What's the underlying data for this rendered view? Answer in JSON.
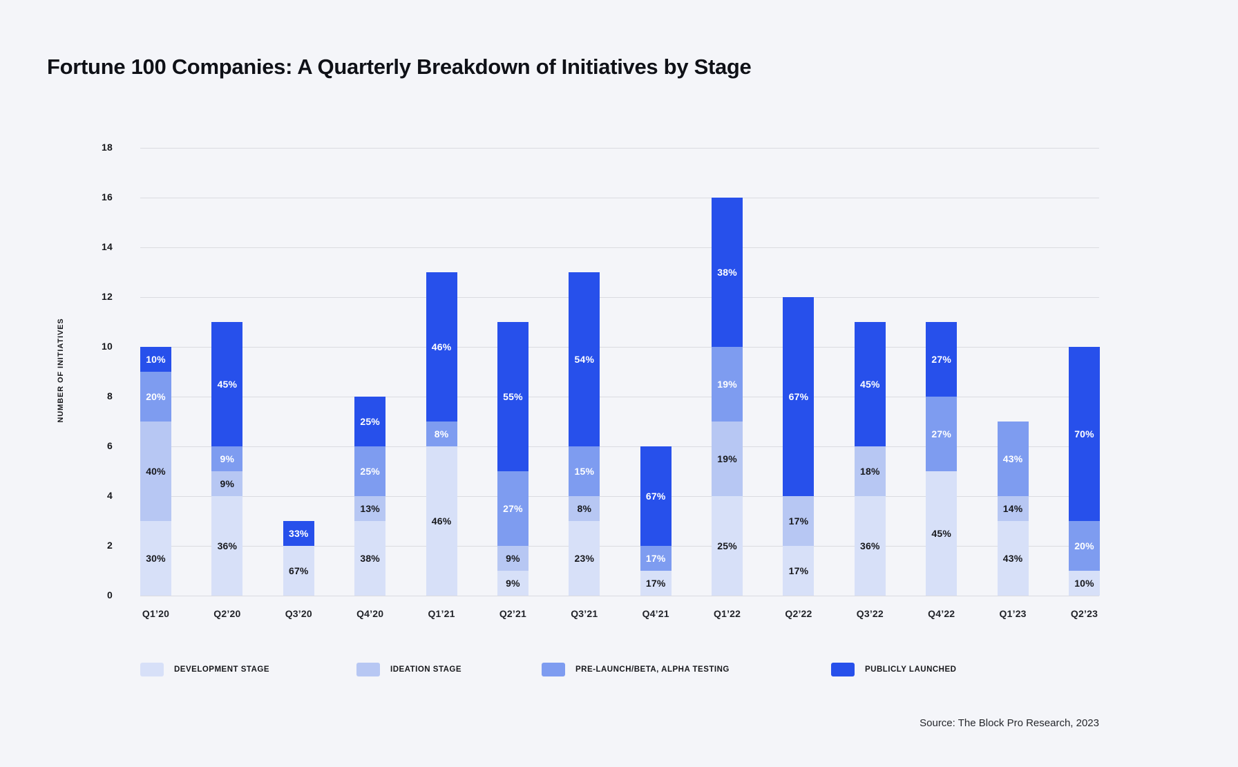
{
  "page": {
    "background": "#f4f5f9",
    "grid_color": "#dadbe0"
  },
  "title": "Fortune 100 Companies: A Quarterly Breakdown of Initiatives by Stage",
  "source": "Source: The Block Pro Research, 2023",
  "chart_data": {
    "type": "bar",
    "stacked": true,
    "title": "Fortune 100 Companies: A Quarterly Breakdown of Initiatives by Stage",
    "xlabel": "",
    "ylabel": "NUMBER OF INITIATIVES",
    "ylim": [
      0,
      18
    ],
    "yticks": [
      0,
      2,
      4,
      6,
      8,
      10,
      12,
      14,
      16,
      18
    ],
    "grid": true,
    "legend_position": "bottom",
    "categories": [
      "Q1’20",
      "Q2’20",
      "Q3’20",
      "Q4’20",
      "Q1’21",
      "Q2’21",
      "Q3’21",
      "Q4’21",
      "Q1’22",
      "Q2’22",
      "Q3’22",
      "Q4’22",
      "Q1’23",
      "Q2’23"
    ],
    "totals": [
      10,
      11,
      3,
      8,
      13,
      11,
      13,
      6,
      16,
      12,
      11,
      11,
      7,
      10
    ],
    "series": [
      {
        "name": "DEVELOPMENT STAGE",
        "color": "#d7e0f8",
        "label_color": "#17181c",
        "values": [
          3,
          4,
          2,
          3,
          6,
          1,
          3,
          1,
          4,
          2,
          4,
          5,
          3,
          1
        ],
        "labels": [
          "30%",
          "36%",
          "67%",
          "38%",
          "46%",
          "9%",
          "23%",
          "17%",
          "25%",
          "17%",
          "36%",
          "45%",
          "43%",
          "10%"
        ]
      },
      {
        "name": "IDEATION STAGE",
        "color": "#b7c7f3",
        "label_color": "#17181c",
        "values": [
          4,
          1,
          0,
          1,
          0,
          1,
          1,
          0,
          3,
          2,
          2,
          0,
          1,
          0
        ],
        "labels": [
          "40%",
          "9%",
          "",
          "13%",
          "",
          "9%",
          "8%",
          "",
          "19%",
          "17%",
          "18%",
          "",
          "14%",
          ""
        ]
      },
      {
        "name": "PRE-LAUNCH/BETA, ALPHA TESTING",
        "color": "#7e9cf0",
        "label_color": "#ffffff",
        "values": [
          2,
          1,
          0,
          2,
          1,
          3,
          2,
          1,
          3,
          0,
          0,
          3,
          3,
          2
        ],
        "labels": [
          "20%",
          "9%",
          "",
          "25%",
          "8%",
          "27%",
          "15%",
          "17%",
          "19%",
          "",
          "",
          "27%",
          "43%",
          "20%"
        ]
      },
      {
        "name": "PUBLICLY LAUNCHED",
        "color": "#2750eb",
        "label_color": "#ffffff",
        "values": [
          1,
          5,
          1,
          2,
          6,
          6,
          7,
          4,
          6,
          8,
          5,
          3,
          0,
          7
        ],
        "labels": [
          "10%",
          "45%",
          "33%",
          "25%",
          "46%",
          "55%",
          "54%",
          "67%",
          "38%",
          "67%",
          "45%",
          "27%",
          "",
          "70%"
        ]
      }
    ],
    "source": "Source: The Block Pro Research, 2023"
  }
}
